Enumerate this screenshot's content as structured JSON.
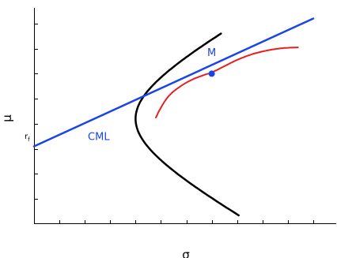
{
  "chart_data": {
    "type": "line",
    "title": "",
    "xlabel": "σ",
    "ylabel": "μ",
    "xlim": [
      0,
      11
    ],
    "ylim": [
      0,
      8.5
    ],
    "grid": false,
    "y_tick_label": {
      "text": "r",
      "subscript": "f",
      "value": 3.1
    },
    "annotations": [
      {
        "text": "CML",
        "x": 2.55,
        "y": 3.35
      },
      {
        "text": "M",
        "x": 7.0,
        "y": 6.7
      }
    ],
    "point_M": {
      "x": 7.0,
      "y": 6.0
    },
    "series": [
      {
        "name": "CML",
        "color": "#1a45e6",
        "kind": "line",
        "x": [
          0,
          11
        ],
        "y": [
          3.1,
          8.2
        ]
      },
      {
        "color": "#000000",
        "kind": "efficient-frontier-hyperbola",
        "a": 4.2,
        "b": 2.2,
        "sigma0": 4.0,
        "y_range": [
          0.35,
          7.6
        ]
      },
      {
        "color": "#e62020",
        "kind": "curve",
        "x": [
          4.8,
          5.0,
          5.3,
          5.7,
          6.2,
          6.7,
          7.0,
          7.5,
          8.0,
          8.6,
          9.2,
          9.8,
          10.4
        ],
        "y": [
          4.25,
          4.65,
          5.1,
          5.45,
          5.75,
          5.95,
          6.05,
          6.3,
          6.55,
          6.78,
          6.93,
          7.02,
          7.05
        ]
      }
    ]
  }
}
